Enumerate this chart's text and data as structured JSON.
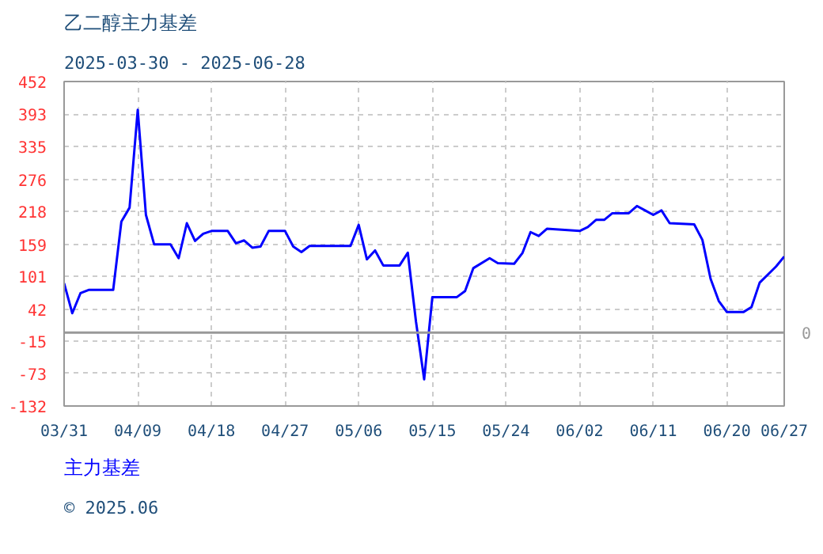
{
  "chart_data": {
    "type": "line",
    "title": "乙二醇主力基差",
    "subtitle": "2025-03-30 - 2025-06-28",
    "x": [
      "2025-03-31",
      "2025-04-01",
      "2025-04-02",
      "2025-04-03",
      "2025-04-06",
      "2025-04-07",
      "2025-04-08",
      "2025-04-09",
      "2025-04-10",
      "2025-04-11",
      "2025-04-13",
      "2025-04-14",
      "2025-04-15",
      "2025-04-16",
      "2025-04-17",
      "2025-04-18",
      "2025-04-20",
      "2025-04-21",
      "2025-04-22",
      "2025-04-23",
      "2025-04-24",
      "2025-04-25",
      "2025-04-27",
      "2025-04-28",
      "2025-04-29",
      "2025-04-30",
      "2025-05-05",
      "2025-05-06",
      "2025-05-07",
      "2025-05-08",
      "2025-05-09",
      "2025-05-11",
      "2025-05-12",
      "2025-05-13",
      "2025-05-14",
      "2025-05-15",
      "2025-05-18",
      "2025-05-19",
      "2025-05-20",
      "2025-05-22",
      "2025-05-23",
      "2025-05-25",
      "2025-05-26",
      "2025-05-27",
      "2025-05-28",
      "2025-05-29",
      "2025-06-02",
      "2025-06-03",
      "2025-06-04",
      "2025-06-05",
      "2025-06-06",
      "2025-06-08",
      "2025-06-09",
      "2025-06-10",
      "2025-06-11",
      "2025-06-12",
      "2025-06-13",
      "2025-06-16",
      "2025-06-17",
      "2025-06-18",
      "2025-06-19",
      "2025-06-20",
      "2025-06-22",
      "2025-06-23",
      "2025-06-24",
      "2025-06-26",
      "2025-06-27"
    ],
    "series": [
      {
        "name": "主力基差",
        "color": "#0000ff",
        "values": [
          89,
          35,
          71,
          77,
          77,
          200,
          225,
          401,
          212,
          159,
          159,
          134,
          197,
          165,
          178,
          183,
          183,
          161,
          166,
          153,
          155,
          183,
          183,
          155,
          145,
          156,
          156,
          194,
          132,
          148,
          121,
          121,
          144,
          20,
          -84,
          64,
          64,
          75,
          116,
          134,
          125,
          124,
          143,
          181,
          174,
          187,
          183,
          190,
          203,
          203,
          215,
          215,
          228,
          220,
          212,
          220,
          197,
          195,
          167,
          97,
          57,
          37,
          37,
          46,
          90,
          119,
          137
        ]
      }
    ],
    "xlim": [
      "2025-03-31",
      "2025-06-27"
    ],
    "xticks": [
      {
        "value": "2025-03-31",
        "label": "03/31"
      },
      {
        "value": "2025-04-09",
        "label": "04/09"
      },
      {
        "value": "2025-04-18",
        "label": "04/18"
      },
      {
        "value": "2025-04-27",
        "label": "04/27"
      },
      {
        "value": "2025-05-06",
        "label": "05/06"
      },
      {
        "value": "2025-05-15",
        "label": "05/15"
      },
      {
        "value": "2025-05-24",
        "label": "05/24"
      },
      {
        "value": "2025-06-02",
        "label": "06/02"
      },
      {
        "value": "2025-06-11",
        "label": "06/11"
      },
      {
        "value": "2025-06-20",
        "label": "06/20"
      },
      {
        "value": "2025-06-27",
        "label": "06/27"
      }
    ],
    "ylim": [
      -132,
      452
    ],
    "yticks": [
      -132,
      -73,
      -15,
      42,
      101,
      159,
      218,
      276,
      335,
      393,
      452
    ],
    "ref_lines": [
      {
        "axis": "y",
        "value": 0,
        "label": "0",
        "color": "#999999"
      }
    ],
    "grid": true,
    "legend": "bottom",
    "marker": "none",
    "line_style": "solid",
    "annotations": [
      "© 2025.06"
    ]
  }
}
